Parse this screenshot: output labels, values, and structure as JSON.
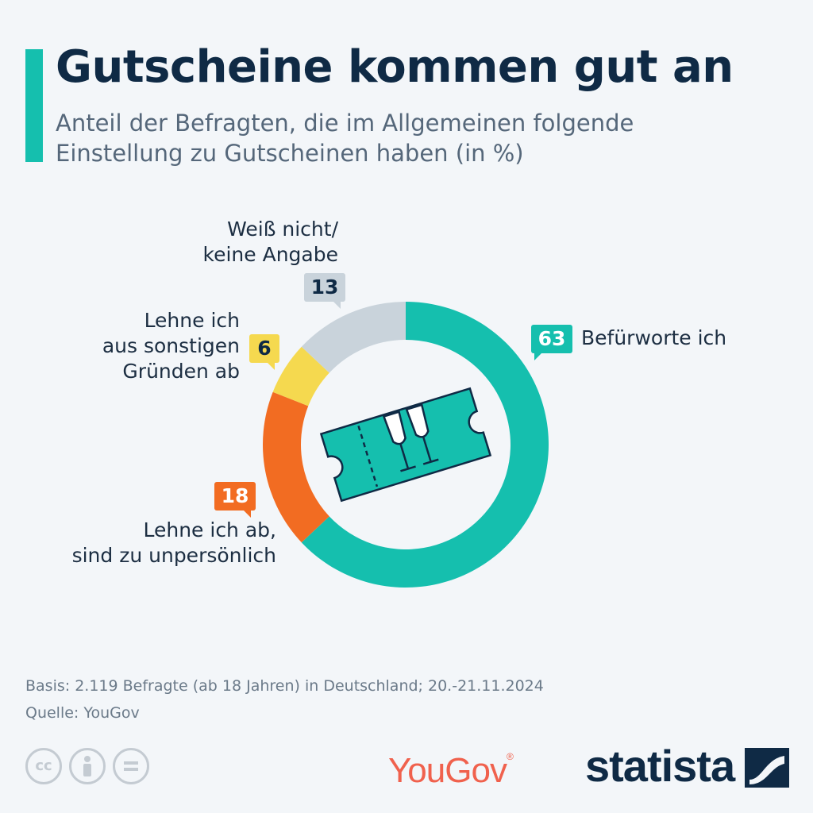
{
  "title": "Gutscheine kommen gut an",
  "subtitle": "Anteil der Befragten, die im Allgemeinen folgende Einstellung zu Gutscheinen haben (in %)",
  "chart_data": {
    "type": "pie",
    "title": "Gutscheine kommen gut an",
    "subtitle": "Anteil der Befragten, die im Allgemeinen folgende Einstellung zu Gutscheinen haben (in %)",
    "unit": "%",
    "categories": [
      "Befürworte ich",
      "Lehne ich ab, sind zu unpersönlich",
      "Lehne ich aus sonstigen Gründen ab",
      "Weiß nicht/ keine Angabe"
    ],
    "values": [
      63,
      18,
      6,
      13
    ],
    "colors": [
      "#15bfae",
      "#f26c22",
      "#f5d94f",
      "#c9d3db"
    ]
  },
  "labels": {
    "befuerworte": "Befürworte ich",
    "unpersoenlich": "Lehne ich ab,\nsind zu unpersönlich",
    "sonstige": "Lehne ich\naus sonstigen\nGründen ab",
    "weiss_nicht": "Weiß nicht/\nkeine Angabe"
  },
  "badges": {
    "befuerworte": "63",
    "unpersoenlich": "18",
    "sonstige": "6",
    "weiss_nicht": "13"
  },
  "footer": {
    "basis": "Basis: 2.119 Befragte (ab 18 Jahren) in Deutschland; 20.-21.11.2024",
    "quelle": "Quelle: YouGov"
  },
  "license_icons": [
    "cc-icon",
    "person-icon",
    "equals-icon"
  ],
  "brands": {
    "partner": "YouGov",
    "publisher": "statista"
  }
}
